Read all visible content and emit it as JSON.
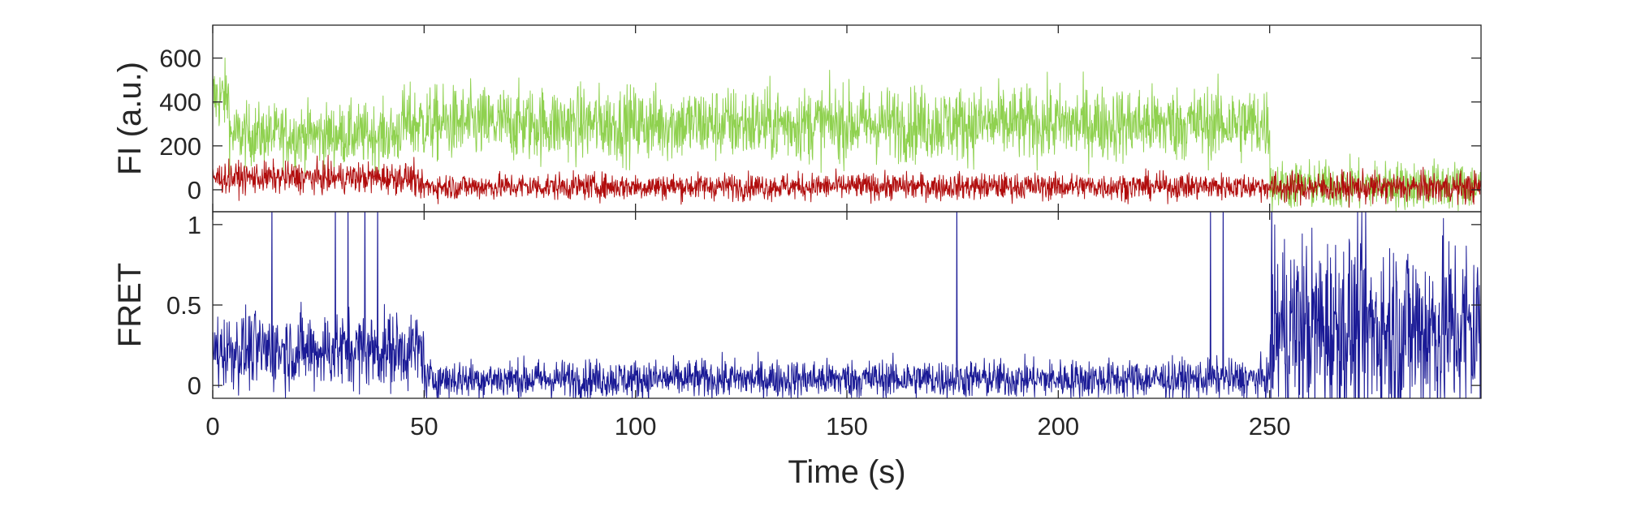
{
  "chart_data": [
    {
      "type": "line",
      "ylabel": "FI (a.u.)",
      "xlim": [
        0,
        300
      ],
      "ylim": [
        -100,
        750
      ],
      "y_ticks": [
        0,
        200,
        400,
        600
      ],
      "y_tick_labels": [
        "0",
        "200",
        "400",
        "600"
      ],
      "grid": false,
      "legend": "none",
      "series": [
        {
          "color": "#8fd14f",
          "style": "noisy trace",
          "segments": [
            {
              "x": [
                0,
                4
              ],
              "mean": 420,
              "noise": 80
            },
            {
              "x": [
                4,
                44
              ],
              "mean": 250,
              "noise": 70
            },
            {
              "x": [
                44,
                250
              ],
              "mean": 300,
              "noise": 85
            },
            {
              "x": [
                250,
                300
              ],
              "mean": 20,
              "noise": 55
            }
          ]
        },
        {
          "color": "#b10d0d",
          "style": "noisy trace",
          "segments": [
            {
              "x": [
                0,
                48
              ],
              "mean": 55,
              "noise": 35
            },
            {
              "x": [
                48,
                250
              ],
              "mean": 15,
              "noise": 30
            },
            {
              "x": [
                250,
                300
              ],
              "mean": 10,
              "noise": 35
            }
          ]
        }
      ]
    },
    {
      "type": "line",
      "ylabel": "FRET",
      "xlabel": "Time (s)",
      "xlim": [
        0,
        300
      ],
      "ylim": [
        -0.08,
        1.08
      ],
      "x_ticks": [
        0,
        50,
        100,
        150,
        200,
        250
      ],
      "x_tick_labels": [
        "0",
        "50",
        "100",
        "150",
        "200",
        "250"
      ],
      "y_ticks": [
        0,
        0.5,
        1
      ],
      "y_tick_labels": [
        "0",
        "0.5",
        "1"
      ],
      "grid": false,
      "legend": "none",
      "series": [
        {
          "color": "#1a1a96",
          "style": "noisy trace",
          "segments": [
            {
              "x": [
                0,
                50
              ],
              "mean": 0.22,
              "noise": 0.12
            },
            {
              "x": [
                50,
                250
              ],
              "mean": 0.04,
              "noise": 0.06
            },
            {
              "x": [
                250,
                300
              ],
              "mean": 0.35,
              "noise": 0.3
            }
          ],
          "spikes": [
            14,
            29,
            32,
            36,
            39,
            176,
            236,
            239
          ]
        }
      ]
    }
  ]
}
